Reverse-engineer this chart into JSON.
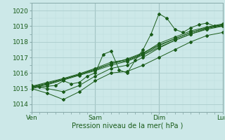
{
  "title": "",
  "xlabel": "Pression niveau de la mer( hPa )",
  "bg_color": "#cce8e8",
  "grid_major_color": "#aacccc",
  "grid_minor_color": "#bbdddd",
  "line_color": "#1a5c1a",
  "ylim": [
    1013.5,
    1020.5
  ],
  "xlim": [
    0,
    72
  ],
  "yticks": [
    1014,
    1015,
    1016,
    1017,
    1018,
    1019,
    1020
  ],
  "xtick_positions": [
    0,
    24,
    48,
    72
  ],
  "xtick_labels": [
    "Ven",
    "Sam",
    "Dim",
    "Lun"
  ],
  "series": [
    [
      0,
      1015.0,
      3,
      1015.1,
      6,
      1015.15,
      9,
      1015.2,
      12,
      1015.5,
      15,
      1015.3,
      18,
      1015.4,
      21,
      1015.8,
      24,
      1016.0,
      27,
      1017.2,
      30,
      1017.4,
      33,
      1016.2,
      36,
      1016.0,
      39,
      1016.8,
      42,
      1017.5,
      45,
      1018.5,
      48,
      1019.8,
      51,
      1019.5,
      54,
      1018.8,
      57,
      1018.6,
      60,
      1018.9,
      63,
      1019.1,
      66,
      1019.2,
      69,
      1019.0,
      72,
      1019.0
    ],
    [
      0,
      1015.1,
      6,
      1015.3,
      12,
      1015.6,
      18,
      1015.9,
      24,
      1016.2,
      30,
      1016.6,
      36,
      1016.9,
      42,
      1017.3,
      48,
      1017.8,
      54,
      1018.2,
      60,
      1018.6,
      66,
      1018.9,
      72,
      1019.1
    ],
    [
      0,
      1015.0,
      6,
      1014.7,
      12,
      1014.3,
      18,
      1014.8,
      24,
      1015.5,
      30,
      1016.0,
      36,
      1016.1,
      42,
      1016.5,
      48,
      1017.0,
      54,
      1017.5,
      60,
      1018.0,
      66,
      1018.4,
      72,
      1018.6
    ],
    [
      0,
      1015.2,
      6,
      1015.0,
      12,
      1014.8,
      18,
      1015.2,
      24,
      1015.8,
      30,
      1016.3,
      36,
      1016.5,
      42,
      1017.0,
      48,
      1017.6,
      54,
      1018.1,
      60,
      1018.5,
      66,
      1018.8,
      72,
      1019.0
    ],
    [
      0,
      1015.05,
      6,
      1015.25,
      12,
      1015.55,
      18,
      1015.85,
      24,
      1016.15,
      30,
      1016.5,
      36,
      1016.75,
      42,
      1017.15,
      48,
      1017.65,
      54,
      1018.1,
      60,
      1018.5,
      66,
      1018.85,
      72,
      1019.05
    ],
    [
      0,
      1015.15,
      6,
      1015.4,
      12,
      1015.65,
      18,
      1015.95,
      24,
      1016.3,
      30,
      1016.7,
      36,
      1016.85,
      42,
      1017.25,
      48,
      1017.9,
      54,
      1018.3,
      60,
      1018.7,
      66,
      1018.95,
      72,
      1019.15
    ],
    [
      0,
      1015.1,
      6,
      1015.35,
      12,
      1015.6,
      18,
      1015.9,
      24,
      1016.25,
      30,
      1016.6,
      36,
      1016.8,
      42,
      1017.2,
      48,
      1017.75,
      54,
      1018.2,
      60,
      1018.6,
      66,
      1018.9,
      72,
      1019.1
    ]
  ]
}
